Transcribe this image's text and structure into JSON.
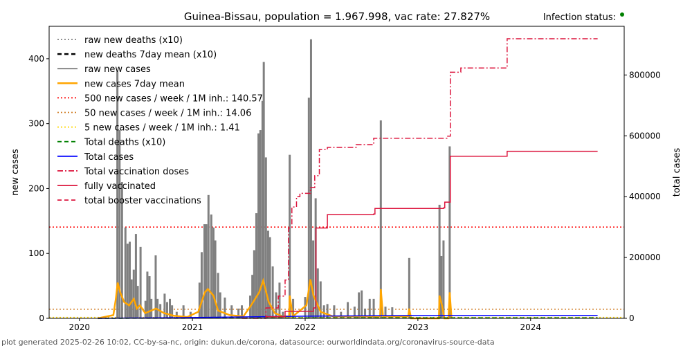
{
  "chart_data": {
    "type": "bar",
    "title": "Guinea-Bissau, population = 1.967.998, vac rate: 27.827%",
    "status_label": "Infection status:",
    "status_color": "#008000",
    "ylabel": "new cases",
    "y2label": "total cases",
    "ylim": [
      0,
      450
    ],
    "y2lim": [
      0,
      960000
    ],
    "xlim": [
      "2019-09-25",
      "2024-10-30"
    ],
    "xticks": [
      "2020",
      "2021",
      "2022",
      "2023",
      "2024"
    ],
    "yticks": [
      "0",
      "100",
      "200",
      "300",
      "400"
    ],
    "y2ticks": [
      "0",
      "200000",
      "400000",
      "600000",
      "800000"
    ],
    "footer": "plot generated 2025-02-26 10:02, CC-by-sa-nc, origin: dukun.de/corona, datasource: ourworldindata.org/coronavirus-source-data",
    "legend_position": "top-left",
    "legend": [
      {
        "label": "raw new deaths (x10)",
        "color": "#808080",
        "style": "dotted"
      },
      {
        "label": "new deaths 7day mean (x10)",
        "color": "#000000",
        "style": "dashed"
      },
      {
        "label": "raw new cases",
        "color": "#808080",
        "style": "solid"
      },
      {
        "label": "new cases 7day mean",
        "color": "#ffa500",
        "style": "solid-thick"
      },
      {
        "label": "500 new cases / week / 1M inh.: 140.57",
        "color": "#ff0000",
        "style": "dotted"
      },
      {
        "label": "50 new cases / week / 1M inh.: 14.06",
        "color": "#d2822d",
        "style": "dotted"
      },
      {
        "label": "5 new cases / week / 1M inh.: 1.41",
        "color": "#ffd700",
        "style": "dotted"
      },
      {
        "label": "Total deaths (x10)",
        "color": "#008000",
        "style": "dashed"
      },
      {
        "label": "Total cases",
        "color": "#0000ff",
        "style": "solid"
      },
      {
        "label": "Total vaccination doses",
        "color": "#dc143c",
        "style": "dashdot"
      },
      {
        "label": "fully vaccinated",
        "color": "#dc143c",
        "style": "solid"
      },
      {
        "label": "total booster vaccinations",
        "color": "#dc143c",
        "style": "dashed"
      }
    ],
    "thresholds": [
      140.57,
      14.06,
      1.41
    ],
    "raw_new_cases": [
      [
        "2020-05-03",
        380
      ],
      [
        "2020-05-10",
        290
      ],
      [
        "2020-05-18",
        210
      ],
      [
        "2020-05-29",
        140
      ],
      [
        "2020-06-05",
        115
      ],
      [
        "2020-06-12",
        118
      ],
      [
        "2020-06-18",
        60
      ],
      [
        "2020-06-25",
        75
      ],
      [
        "2020-07-02",
        130
      ],
      [
        "2020-07-08",
        50
      ],
      [
        "2020-07-17",
        110
      ],
      [
        "2020-08-02",
        27
      ],
      [
        "2020-08-08",
        72
      ],
      [
        "2020-08-15",
        65
      ],
      [
        "2020-08-21",
        30
      ],
      [
        "2020-09-04",
        97
      ],
      [
        "2020-09-10",
        30
      ],
      [
        "2020-09-19",
        22
      ],
      [
        "2020-10-03",
        38
      ],
      [
        "2020-10-11",
        25
      ],
      [
        "2020-10-20",
        30
      ],
      [
        "2020-10-27",
        20
      ],
      [
        "2020-11-11",
        10
      ],
      [
        "2020-12-03",
        20
      ],
      [
        "2020-12-26",
        10
      ],
      [
        "2021-01-24",
        55
      ],
      [
        "2021-01-31",
        102
      ],
      [
        "2021-02-09",
        145
      ],
      [
        "2021-02-15",
        145
      ],
      [
        "2021-02-22",
        190
      ],
      [
        "2021-03-03",
        160
      ],
      [
        "2021-03-10",
        140
      ],
      [
        "2021-03-16",
        120
      ],
      [
        "2021-03-25",
        70
      ],
      [
        "2021-04-01",
        40
      ],
      [
        "2021-04-16",
        32
      ],
      [
        "2021-05-08",
        20
      ],
      [
        "2021-05-30",
        15
      ],
      [
        "2021-06-10",
        20
      ],
      [
        "2021-07-07",
        35
      ],
      [
        "2021-07-14",
        67
      ],
      [
        "2021-07-20",
        105
      ],
      [
        "2021-07-27",
        162
      ],
      [
        "2021-08-03",
        285
      ],
      [
        "2021-08-09",
        290
      ],
      [
        "2021-08-16",
        335
      ],
      [
        "2021-08-20",
        395
      ],
      [
        "2021-08-27",
        248
      ],
      [
        "2021-09-03",
        135
      ],
      [
        "2021-09-09",
        125
      ],
      [
        "2021-09-18",
        80
      ],
      [
        "2021-09-29",
        40
      ],
      [
        "2021-10-10",
        55
      ],
      [
        "2021-10-21",
        10
      ],
      [
        "2021-11-12",
        252
      ],
      [
        "2021-11-23",
        30
      ],
      [
        "2022-01-01",
        33
      ],
      [
        "2022-01-13",
        340
      ],
      [
        "2022-01-20",
        430
      ],
      [
        "2022-01-27",
        120
      ],
      [
        "2022-02-04",
        185
      ],
      [
        "2022-02-11",
        77
      ],
      [
        "2022-02-20",
        57
      ],
      [
        "2022-03-03",
        20
      ],
      [
        "2022-03-14",
        22
      ],
      [
        "2022-04-05",
        20
      ],
      [
        "2022-04-27",
        10
      ],
      [
        "2022-05-19",
        25
      ],
      [
        "2022-06-10",
        18
      ],
      [
        "2022-06-24",
        40
      ],
      [
        "2022-07-03",
        43
      ],
      [
        "2022-07-14",
        15
      ],
      [
        "2022-07-29",
        30
      ],
      [
        "2022-08-11",
        30
      ],
      [
        "2022-09-03",
        305
      ],
      [
        "2022-09-18",
        18
      ],
      [
        "2022-10-10",
        17
      ],
      [
        "2022-12-04",
        93
      ],
      [
        "2023-03-12",
        175
      ],
      [
        "2023-03-18",
        96
      ],
      [
        "2023-03-25",
        120
      ],
      [
        "2023-04-14",
        265
      ]
    ],
    "new_cases_7day_mean": [
      [
        "2020-03-01",
        0
      ],
      [
        "2020-04-20",
        5
      ],
      [
        "2020-04-28",
        30
      ],
      [
        "2020-05-04",
        55
      ],
      [
        "2020-05-12",
        40
      ],
      [
        "2020-05-25",
        25
      ],
      [
        "2020-06-10",
        20
      ],
      [
        "2020-06-25",
        30
      ],
      [
        "2020-07-05",
        15
      ],
      [
        "2020-07-15",
        20
      ],
      [
        "2020-08-01",
        8
      ],
      [
        "2020-09-05",
        15
      ],
      [
        "2020-10-01",
        8
      ],
      [
        "2020-11-01",
        4
      ],
      [
        "2020-12-15",
        2
      ],
      [
        "2021-01-20",
        10
      ],
      [
        "2021-02-10",
        40
      ],
      [
        "2021-02-20",
        45
      ],
      [
        "2021-03-10",
        35
      ],
      [
        "2021-03-25",
        12
      ],
      [
        "2021-05-01",
        5
      ],
      [
        "2021-06-15",
        3
      ],
      [
        "2021-07-10",
        20
      ],
      [
        "2021-08-05",
        40
      ],
      [
        "2021-08-18",
        58
      ],
      [
        "2021-09-05",
        25
      ],
      [
        "2021-09-25",
        8
      ],
      [
        "2021-10-20",
        3
      ],
      [
        "2021-11-10",
        3
      ],
      [
        "2021-11-12",
        35
      ],
      [
        "2021-11-22",
        3
      ],
      [
        "2022-01-05",
        20
      ],
      [
        "2022-01-18",
        60
      ],
      [
        "2022-01-28",
        35
      ],
      [
        "2022-02-20",
        10
      ],
      [
        "2022-04-01",
        3
      ],
      [
        "2022-09-01",
        3
      ],
      [
        "2022-09-03",
        45
      ],
      [
        "2022-09-10",
        3
      ],
      [
        "2022-12-01",
        3
      ],
      [
        "2022-12-04",
        15
      ],
      [
        "2022-12-10",
        0
      ],
      [
        "2023-03-10",
        0
      ],
      [
        "2023-03-12",
        35
      ],
      [
        "2023-03-20",
        20
      ],
      [
        "2023-03-28",
        0
      ],
      [
        "2023-04-10",
        0
      ],
      [
        "2023-04-14",
        40
      ],
      [
        "2023-04-20",
        0
      ]
    ],
    "total_cases": [
      [
        "2020-03-01",
        0
      ],
      [
        "2020-12-31",
        2450
      ],
      [
        "2021-12-31",
        7000
      ],
      [
        "2022-12-31",
        9300
      ],
      [
        "2024-08-05",
        9600
      ]
    ],
    "total_deaths_x10": [
      [
        "2020-03-01",
        0
      ],
      [
        "2020-12-31",
        450
      ],
      [
        "2021-12-31",
        1400
      ],
      [
        "2022-12-31",
        1770
      ],
      [
        "2024-08-05",
        1770
      ]
    ],
    "total_vaccination_doses": [
      [
        "2021-06-10",
        0
      ],
      [
        "2021-08-27",
        34000
      ],
      [
        "2021-10-06",
        73000
      ],
      [
        "2021-10-28",
        126000
      ],
      [
        "2021-11-08",
        297000
      ],
      [
        "2021-11-19",
        366000
      ],
      [
        "2021-12-04",
        400000
      ],
      [
        "2021-12-15",
        411000
      ],
      [
        "2022-01-18",
        430000
      ],
      [
        "2022-02-01",
        469000
      ],
      [
        "2022-02-16",
        555000
      ],
      [
        "2022-03-14",
        562000
      ],
      [
        "2022-06-15",
        571000
      ],
      [
        "2022-08-11",
        592000
      ],
      [
        "2023-04-05",
        599000
      ],
      [
        "2023-04-16",
        809000
      ],
      [
        "2023-05-20",
        823000
      ],
      [
        "2023-10-15",
        825000
      ],
      [
        "2023-10-17",
        919000
      ],
      [
        "2024-08-05",
        919000
      ]
    ],
    "fully_vaccinated": [
      [
        "2021-08-27",
        5000
      ],
      [
        "2021-10-28",
        23000
      ],
      [
        "2022-01-28",
        34000
      ],
      [
        "2022-02-05",
        297000
      ],
      [
        "2022-03-14",
        341000
      ],
      [
        "2022-08-11",
        343000
      ],
      [
        "2022-08-15",
        361000
      ],
      [
        "2023-03-25",
        363000
      ],
      [
        "2023-03-29",
        382000
      ],
      [
        "2023-04-14",
        382000
      ],
      [
        "2023-04-16",
        533000
      ],
      [
        "2023-10-15",
        533000
      ],
      [
        "2023-10-17",
        549000
      ],
      [
        "2024-08-05",
        549000
      ]
    ]
  }
}
